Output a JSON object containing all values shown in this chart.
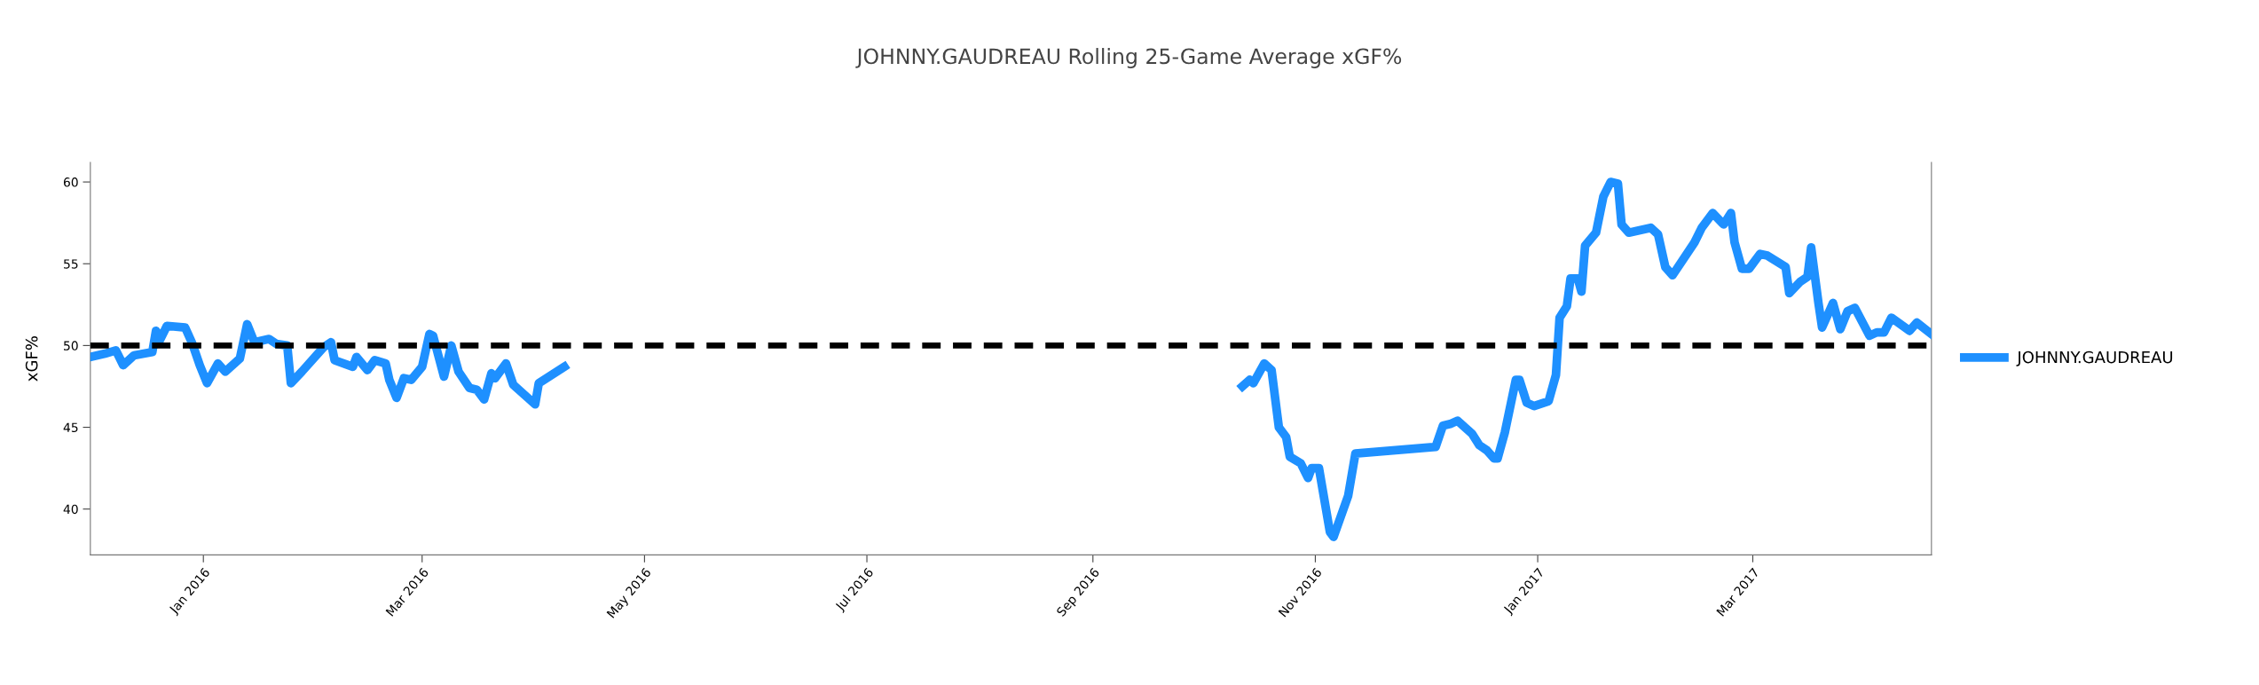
{
  "chart_data": {
    "type": "line",
    "title": "JOHNNY.GAUDREAU Rolling 25-Game Average xGF%",
    "ylabel": "xGF%",
    "x": [
      "2015-12-01",
      "2015-12-05",
      "2015-12-08",
      "2015-12-10",
      "2015-12-13",
      "2015-12-18",
      "2015-12-19",
      "2015-12-20",
      "2015-12-22",
      "2015-12-27",
      "2015-12-29",
      "2015-12-31",
      "2016-01-02",
      "2016-01-05",
      "2016-01-07",
      "2016-01-11",
      "2016-01-13",
      "2016-01-15",
      "2016-01-19",
      "2016-01-21",
      "2016-01-24",
      "2016-01-25",
      "2016-01-28",
      "2016-02-03",
      "2016-02-05",
      "2016-02-06",
      "2016-02-11",
      "2016-02-12",
      "2016-02-15",
      "2016-02-17",
      "2016-02-20",
      "2016-02-21",
      "2016-02-23",
      "2016-02-25",
      "2016-02-27",
      "2016-03-01",
      "2016-03-03",
      "2016-03-04",
      "2016-03-07",
      "2016-03-09",
      "2016-03-11",
      "2016-03-14",
      "2016-03-16",
      "2016-03-18",
      "2016-03-20",
      "2016-03-21",
      "2016-03-24",
      "2016-03-26",
      "2016-04-01",
      "2016-04-02",
      "2016-04-09",
      "2016-07-01",
      "2016-10-12",
      "2016-10-14",
      "2016-10-15",
      "2016-10-18",
      "2016-10-20",
      "2016-10-22",
      "2016-10-24",
      "2016-10-25",
      "2016-10-28",
      "2016-10-30",
      "2016-10-31",
      "2016-11-02",
      "2016-11-03",
      "2016-11-05",
      "2016-11-06",
      "2016-11-10",
      "2016-11-12",
      "2016-12-04",
      "2016-12-06",
      "2016-12-08",
      "2016-12-10",
      "2016-12-14",
      "2016-12-16",
      "2016-12-18",
      "2016-12-20",
      "2016-12-21",
      "2016-12-23",
      "2016-12-26",
      "2016-12-27",
      "2016-12-29",
      "2016-12-31",
      "2017-01-04",
      "2017-01-06",
      "2017-01-07",
      "2017-01-09",
      "2017-01-10",
      "2017-01-12",
      "2017-01-13",
      "2017-01-14",
      "2017-01-17",
      "2017-01-19",
      "2017-01-21",
      "2017-01-23",
      "2017-01-24",
      "2017-01-26",
      "2017-02-01",
      "2017-02-03",
      "2017-02-05",
      "2017-02-07",
      "2017-02-13",
      "2017-02-15",
      "2017-02-18",
      "2017-02-21",
      "2017-02-23",
      "2017-02-24",
      "2017-02-26",
      "2017-02-28",
      "2017-03-03",
      "2017-03-05",
      "2017-03-10",
      "2017-03-11",
      "2017-03-14",
      "2017-03-16",
      "2017-03-17",
      "2017-03-19",
      "2017-03-20",
      "2017-03-23",
      "2017-03-25",
      "2017-03-27",
      "2017-03-29",
      "2017-04-02",
      "2017-04-04",
      "2017-04-06",
      "2017-04-08",
      "2017-04-13",
      "2017-04-15",
      "2017-04-19"
    ],
    "series": [
      {
        "name": "JOHNNY.GAUDREAU",
        "color": "#1e90ff",
        "values": [
          49.3,
          49.5,
          49.7,
          48.8,
          49.4,
          49.6,
          50.9,
          50.3,
          51.2,
          51.1,
          50.1,
          48.8,
          47.7,
          48.9,
          48.4,
          49.2,
          51.3,
          50.2,
          50.4,
          50.1,
          50.0,
          47.7,
          48.4,
          49.9,
          50.2,
          49.1,
          48.7,
          49.3,
          48.5,
          49.1,
          48.9,
          47.9,
          46.8,
          48.0,
          47.9,
          48.7,
          50.7,
          50.6,
          48.1,
          50.0,
          48.4,
          47.4,
          47.3,
          46.7,
          48.3,
          48.0,
          48.9,
          47.6,
          46.4,
          47.7,
          48.7,
          null,
          47.5,
          47.9,
          47.7,
          48.9,
          48.5,
          45.0,
          44.4,
          43.2,
          42.8,
          41.9,
          42.5,
          42.5,
          41.2,
          38.6,
          38.3,
          40.8,
          43.4,
          43.8,
          45.1,
          45.2,
          45.4,
          44.6,
          43.9,
          43.6,
          43.1,
          43.1,
          44.7,
          47.9,
          47.9,
          46.5,
          46.3,
          46.6,
          48.2,
          51.7,
          52.4,
          54.1,
          54.1,
          53.3,
          56.1,
          56.9,
          59.1,
          60.0,
          59.9,
          57.4,
          56.9,
          57.2,
          56.8,
          54.8,
          54.3,
          56.3,
          57.2,
          58.1,
          57.4,
          58.1,
          56.3,
          54.7,
          54.7,
          55.6,
          55.5,
          54.8,
          53.2,
          53.9,
          54.2,
          56.0,
          52.6,
          51.1,
          52.6,
          51.0,
          52.1,
          52.3,
          50.6,
          50.8,
          50.8,
          51.7,
          50.9,
          51.4,
          50.7
        ]
      }
    ],
    "xlim": [
      "2015-12-01",
      "2017-04-19"
    ],
    "xticks": [
      {
        "value": "2016-01-01",
        "label": "Jan 2016"
      },
      {
        "value": "2016-03-01",
        "label": "Mar 2016"
      },
      {
        "value": "2016-05-01",
        "label": "May 2016"
      },
      {
        "value": "2016-07-01",
        "label": "Jul 2016"
      },
      {
        "value": "2016-09-01",
        "label": "Sep 2016"
      },
      {
        "value": "2016-11-01",
        "label": "Nov 2016"
      },
      {
        "value": "2017-01-01",
        "label": "Jan 2017"
      },
      {
        "value": "2017-03-01",
        "label": "Mar 2017"
      }
    ],
    "ylim": [
      37.2,
      61.2
    ],
    "yticks": [
      40,
      45,
      50,
      55,
      60
    ],
    "ref_lines": [
      {
        "axis": "y",
        "value": 50,
        "color": "#000000",
        "line_style": "dashed"
      }
    ],
    "legend": "right",
    "line_style": "solid",
    "grid": false
  }
}
